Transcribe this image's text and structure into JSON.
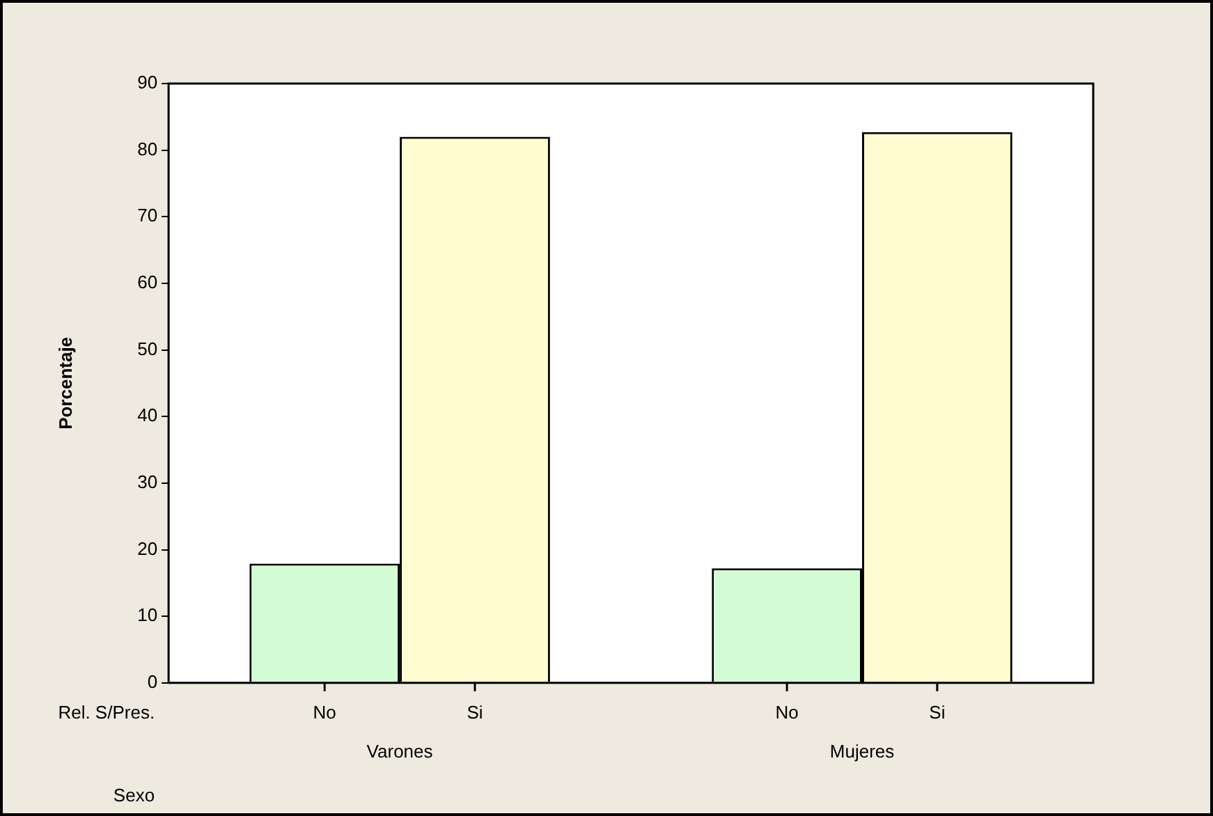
{
  "chart_data": {
    "type": "bar",
    "categories": [
      "Varones",
      "Mujeres"
    ],
    "ylabel": "Porcentaje",
    "ylim": [
      0,
      90
    ],
    "yticks": [
      0,
      10,
      20,
      30,
      40,
      50,
      60,
      70,
      80,
      90
    ],
    "series": [
      {
        "name": "No",
        "color": "#d4fcd4",
        "values": [
          17.9,
          17.2
        ]
      },
      {
        "name": "Si",
        "color": "#fefcd0",
        "values": [
          82,
          82.7
        ]
      }
    ],
    "annotations": [
      "Rel. S/Pres.",
      "Sexo"
    ]
  }
}
